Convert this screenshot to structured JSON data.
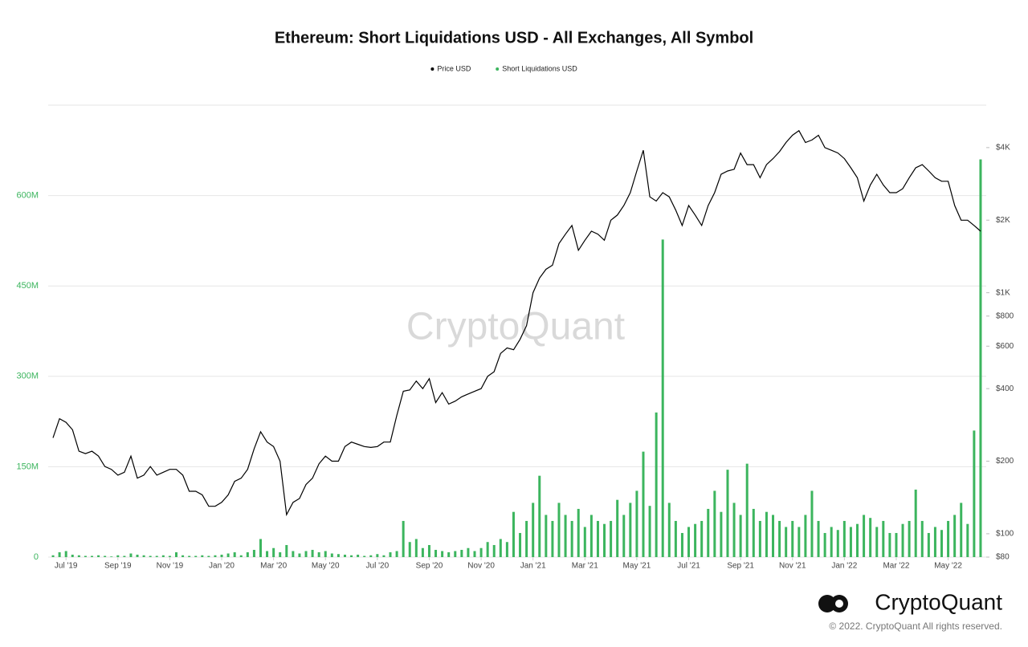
{
  "chart_data": {
    "type": "bar-line",
    "title": "Ethereum: Short Liquidations USD - All Exchanges, All Symbol",
    "categories": [
      null,
      null,
      "Jul '19",
      null,
      null,
      null,
      null,
      null,
      null,
      null,
      "Sep '19",
      null,
      null,
      null,
      null,
      null,
      null,
      null,
      "Nov '19",
      null,
      null,
      null,
      null,
      null,
      null,
      null,
      "Jan '20",
      null,
      null,
      null,
      null,
      null,
      null,
      null,
      "Mar '20",
      null,
      null,
      null,
      null,
      null,
      null,
      null,
      "May '20",
      null,
      null,
      null,
      null,
      null,
      null,
      null,
      "Jul '20",
      null,
      null,
      null,
      null,
      null,
      null,
      null,
      "Sep '20",
      null,
      null,
      null,
      null,
      null,
      null,
      null,
      "Nov '20",
      null,
      null,
      null,
      null,
      null,
      null,
      null,
      "Jan '21",
      null,
      null,
      null,
      null,
      null,
      null,
      null,
      "Mar '21",
      null,
      null,
      null,
      null,
      null,
      null,
      null,
      "May '21",
      null,
      null,
      null,
      null,
      null,
      null,
      null,
      "Jul '21",
      null,
      null,
      null,
      null,
      null,
      null,
      null,
      "Sep '21",
      null,
      null,
      null,
      null,
      null,
      null,
      null,
      "Nov '21",
      null,
      null,
      null,
      null,
      null,
      null,
      null,
      "Jan '22",
      null,
      null,
      null,
      null,
      null,
      null,
      null,
      "Mar '22",
      null,
      null,
      null,
      null,
      null,
      null,
      null,
      "May '22",
      null,
      null,
      null,
      null,
      null
    ],
    "series": [
      {
        "name": "Price USD",
        "color": "#000000",
        "axis": "y2",
        "kind": "line",
        "values": [
          250,
          300,
          290,
          270,
          220,
          215,
          220,
          210,
          190,
          185,
          175,
          180,
          210,
          170,
          175,
          190,
          175,
          180,
          185,
          185,
          175,
          150,
          150,
          145,
          130,
          130,
          135,
          145,
          165,
          170,
          185,
          225,
          265,
          240,
          230,
          200,
          120,
          135,
          140,
          160,
          170,
          195,
          210,
          200,
          200,
          230,
          240,
          235,
          230,
          228,
          230,
          240,
          240,
          310,
          390,
          395,
          430,
          400,
          440,
          350,
          385,
          345,
          355,
          370,
          380,
          390,
          400,
          450,
          470,
          560,
          590,
          580,
          640,
          730,
          1000,
          1150,
          1250,
          1300,
          1600,
          1750,
          1900,
          1500,
          1650,
          1800,
          1750,
          1650,
          2000,
          2100,
          2300,
          2600,
          3200,
          3900,
          2500,
          2400,
          2600,
          2500,
          2200,
          1900,
          2300,
          2100,
          1900,
          2300,
          2600,
          3100,
          3200,
          3250,
          3800,
          3400,
          3400,
          3000,
          3400,
          3600,
          3850,
          4200,
          4500,
          4700,
          4200,
          4300,
          4500,
          4000,
          3900,
          3800,
          3600,
          3300,
          3000,
          2400,
          2800,
          3100,
          2800,
          2600,
          2600,
          2700,
          3000,
          3300,
          3400,
          3200,
          3000,
          2900,
          2900,
          2300,
          2000,
          2000,
          1900,
          1800
        ]
      },
      {
        "name": "Short Liquidations USD",
        "color": "#3cb55e",
        "axis": "y",
        "kind": "bar",
        "values": [
          3000000.0,
          8000000.0,
          10000000.0,
          4000000.0,
          3000000.0,
          2000000.0,
          2000000.0,
          3000000.0,
          2000000.0,
          1000000.0,
          3000000.0,
          2000000.0,
          6000000.0,
          4000000.0,
          3000000.0,
          2000000.0,
          2000000.0,
          3000000.0,
          2000000.0,
          8000000.0,
          3000000.0,
          2000000.0,
          2000000.0,
          3000000.0,
          2000000.0,
          3000000.0,
          4000000.0,
          6000000.0,
          8000000.0,
          3000000.0,
          8000000.0,
          12000000.0,
          30000000.0,
          10000000.0,
          15000000.0,
          8000000.0,
          20000000.0,
          10000000.0,
          6000000.0,
          10000000.0,
          12000000.0,
          8000000.0,
          10000000.0,
          6000000.0,
          5000000.0,
          4000000.0,
          3000000.0,
          4000000.0,
          2000000.0,
          3000000.0,
          5000000.0,
          3000000.0,
          8000000.0,
          10000000.0,
          60000000.0,
          25000000.0,
          30000000.0,
          15000000.0,
          20000000.0,
          12000000.0,
          10000000.0,
          8000000.0,
          10000000.0,
          12000000.0,
          15000000.0,
          10000000.0,
          15000000.0,
          25000000.0,
          20000000.0,
          30000000.0,
          25000000.0,
          75000000.0,
          40000000.0,
          60000000.0,
          90000000.0,
          135000000.0,
          70000000.0,
          60000000.0,
          90000000.0,
          70000000.0,
          60000000.0,
          80000000.0,
          50000000.0,
          70000000.0,
          60000000.0,
          55000000.0,
          60000000.0,
          95000000.0,
          70000000.0,
          90000000.0,
          110000000.0,
          175000000.0,
          85000000.0,
          240000000.0,
          527000000.0,
          90000000.0,
          60000000.0,
          40000000.0,
          50000000.0,
          55000000.0,
          60000000.0,
          80000000.0,
          110000000.0,
          75000000.0,
          145000000.0,
          90000000.0,
          70000000.0,
          155000000.0,
          80000000.0,
          60000000.0,
          75000000.0,
          70000000.0,
          60000000.0,
          50000000.0,
          60000000.0,
          50000000.0,
          70000000.0,
          110000000.0,
          60000000.0,
          40000000.0,
          50000000.0,
          45000000.0,
          60000000.0,
          50000000.0,
          55000000.0,
          70000000.0,
          65000000.0,
          50000000.0,
          60000000.0,
          40000000.0,
          40000000.0,
          55000000.0,
          60000000.0,
          112000000.0,
          60000000.0,
          40000000.0,
          50000000.0,
          45000000.0,
          60000000.0,
          70000000.0,
          90000000.0,
          55000000.0,
          210000000.0,
          660000000.0
        ]
      }
    ],
    "ylim": [
      0,
      750000000
    ],
    "yticks": [
      0,
      {
        "value": 150000000,
        "label": "150M"
      },
      {
        "value": 300000000,
        "label": "300M"
      },
      {
        "value": 450000000,
        "label": "450M"
      },
      {
        "value": 600000000,
        "label": "600M"
      }
    ],
    "y2lim": [
      80,
      6000
    ],
    "y2log": true,
    "y2ticks": [
      {
        "value": 80,
        "label": "$80"
      },
      {
        "value": 100,
        "label": "$100"
      },
      {
        "value": 200,
        "label": "$200"
      },
      {
        "value": 400,
        "label": "$400"
      },
      {
        "value": 600,
        "label": "$600"
      },
      {
        "value": 800,
        "label": "$800"
      },
      {
        "value": 1000,
        "label": "$1K"
      },
      {
        "value": 2000,
        "label": "$2K"
      },
      {
        "value": 4000,
        "label": "$4K"
      }
    ],
    "grid": true,
    "legend": "top"
  },
  "watermark": "CryptoQuant",
  "footer": {
    "brand": "CryptoQuant",
    "copyright": "© 2022. CryptoQuant All rights reserved."
  }
}
